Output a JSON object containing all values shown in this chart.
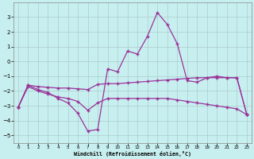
{
  "xlabel": "Windchill (Refroidissement éolien,°C)",
  "x": [
    0,
    1,
    2,
    3,
    4,
    5,
    6,
    7,
    8,
    9,
    10,
    11,
    12,
    13,
    14,
    15,
    16,
    17,
    18,
    19,
    20,
    21,
    22,
    23
  ],
  "line1": [
    -3.1,
    -1.6,
    -1.9,
    -2.1,
    -2.5,
    -2.8,
    -3.5,
    -4.7,
    -4.6,
    -0.5,
    -0.7,
    0.7,
    0.5,
    1.7,
    3.3,
    2.5,
    1.2,
    -1.3,
    -1.4,
    -1.1,
    -1.0,
    -1.1,
    -1.1,
    -3.6
  ],
  "line2": [
    -3.1,
    -1.6,
    -1.7,
    -1.75,
    -1.8,
    -1.8,
    -1.85,
    -1.9,
    -1.55,
    -1.5,
    -1.5,
    -1.45,
    -1.4,
    -1.35,
    -1.3,
    -1.25,
    -1.2,
    -1.15,
    -1.1,
    -1.1,
    -1.1,
    -1.1,
    -1.1,
    -3.6
  ],
  "line3": [
    -3.1,
    -1.7,
    -2.0,
    -2.2,
    -2.4,
    -2.5,
    -2.7,
    -3.3,
    -2.8,
    -2.5,
    -2.5,
    -2.5,
    -2.5,
    -2.5,
    -2.5,
    -2.5,
    -2.6,
    -2.7,
    -2.8,
    -2.9,
    -3.0,
    -3.1,
    -3.2,
    -3.6
  ],
  "line_color": "#993399",
  "bg_color": "#c8efef",
  "grid_color": "#aacccc",
  "ylim": [
    -5.5,
    4.0
  ],
  "xlim": [
    -0.5,
    23.5
  ],
  "yticks": [
    -5,
    -4,
    -3,
    -2,
    -1,
    0,
    1,
    2,
    3
  ],
  "xticks": [
    0,
    1,
    2,
    3,
    4,
    5,
    6,
    7,
    8,
    9,
    10,
    11,
    12,
    13,
    14,
    15,
    16,
    17,
    18,
    19,
    20,
    21,
    22,
    23
  ],
  "marker": "+",
  "markersize": 3.5,
  "linewidth": 0.9
}
